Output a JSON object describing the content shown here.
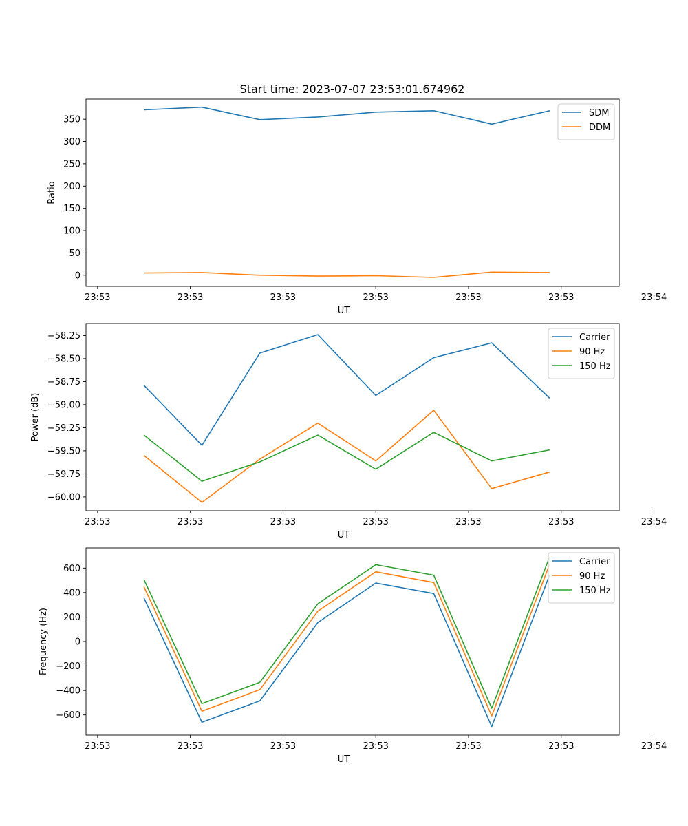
{
  "title": "Start time: 2023-07-07 23:53:01.674962",
  "chart_data": [
    {
      "type": "line",
      "title": "Start time: 2023-07-07 23:53:01.674962",
      "xlabel": "UT",
      "ylabel": "Ratio",
      "x": [
        1,
        2,
        3,
        4,
        5,
        6,
        7,
        8
      ],
      "xlim": [
        0,
        9.2
      ],
      "xticks": [
        0.2,
        1.8,
        3.4,
        5,
        6.6,
        8.2,
        9.8
      ],
      "xtick_labels": [
        "23:53",
        "23:53",
        "23:53",
        "23:53",
        "23:53",
        "23:53",
        "23:54"
      ],
      "ylim": [
        -25,
        395
      ],
      "yticks": [
        0,
        50,
        100,
        150,
        200,
        250,
        300,
        350
      ],
      "ytick_labels": [
        "0",
        "50",
        "100",
        "150",
        "200",
        "250",
        "300",
        "350"
      ],
      "legend_position": "top-right",
      "series": [
        {
          "name": "SDM",
          "color": "#1f77b4",
          "values": [
            371,
            377,
            349,
            355,
            366,
            369,
            339,
            369
          ]
        },
        {
          "name": "DDM",
          "color": "#ff7f0e",
          "values": [
            5,
            6,
            0,
            -2,
            -1,
            -5,
            7,
            6
          ]
        }
      ]
    },
    {
      "type": "line",
      "xlabel": "UT",
      "ylabel": "Power (dB)",
      "x": [
        1,
        2,
        3,
        4,
        5,
        6,
        7,
        8
      ],
      "xlim": [
        0,
        9.2
      ],
      "xticks": [
        0.2,
        1.8,
        3.4,
        5,
        6.6,
        8.2,
        9.8
      ],
      "xtick_labels": [
        "23:53",
        "23:53",
        "23:53",
        "23:53",
        "23:53",
        "23:53",
        "23:54"
      ],
      "ylim": [
        -60.15,
        -58.12
      ],
      "yticks": [
        -60.0,
        -59.75,
        -59.5,
        -59.25,
        -59.0,
        -58.75,
        -58.5,
        -58.25
      ],
      "ytick_labels": [
        "−60.00",
        "−59.75",
        "−59.50",
        "−59.25",
        "−59.00",
        "−58.75",
        "−58.50",
        "−58.25"
      ],
      "legend_position": "top-right",
      "series": [
        {
          "name": "Carrier",
          "color": "#1f77b4",
          "values": [
            -58.79,
            -59.44,
            -58.44,
            -58.24,
            -58.9,
            -58.49,
            -58.33,
            -58.93
          ]
        },
        {
          "name": "90 Hz",
          "color": "#ff7f0e",
          "values": [
            -59.55,
            -60.06,
            -59.59,
            -59.2,
            -59.61,
            -59.06,
            -59.91,
            -59.73
          ]
        },
        {
          "name": "150 Hz",
          "color": "#2ca02c",
          "values": [
            -59.33,
            -59.83,
            -59.62,
            -59.33,
            -59.7,
            -59.3,
            -59.61,
            -59.49
          ]
        }
      ]
    },
    {
      "type": "line",
      "xlabel": "UT",
      "ylabel": "Frequency (Hz)",
      "x": [
        1,
        2,
        3,
        4,
        5,
        6,
        7,
        8
      ],
      "xlim": [
        0,
        9.2
      ],
      "xticks": [
        0.2,
        1.8,
        3.4,
        5,
        6.6,
        8.2,
        9.8
      ],
      "xtick_labels": [
        "23:53",
        "23:53",
        "23:53",
        "23:53",
        "23:53",
        "23:53",
        "23:54"
      ],
      "ylim": [
        -765,
        765
      ],
      "yticks": [
        -600,
        -400,
        -200,
        0,
        200,
        400,
        600
      ],
      "ytick_labels": [
        "−600",
        "−400",
        "−200",
        "0",
        "200",
        "400",
        "600"
      ],
      "legend_position": "top-right",
      "series": [
        {
          "name": "Carrier",
          "color": "#1f77b4",
          "values": [
            356,
            -660,
            -485,
            155,
            478,
            392,
            -695,
            545
          ]
        },
        {
          "name": "90 Hz",
          "color": "#ff7f0e",
          "values": [
            447,
            -570,
            -393,
            248,
            570,
            482,
            -608,
            632
          ]
        },
        {
          "name": "150 Hz",
          "color": "#2ca02c",
          "values": [
            506,
            -508,
            -333,
            308,
            628,
            542,
            -545,
            692
          ]
        }
      ]
    }
  ]
}
